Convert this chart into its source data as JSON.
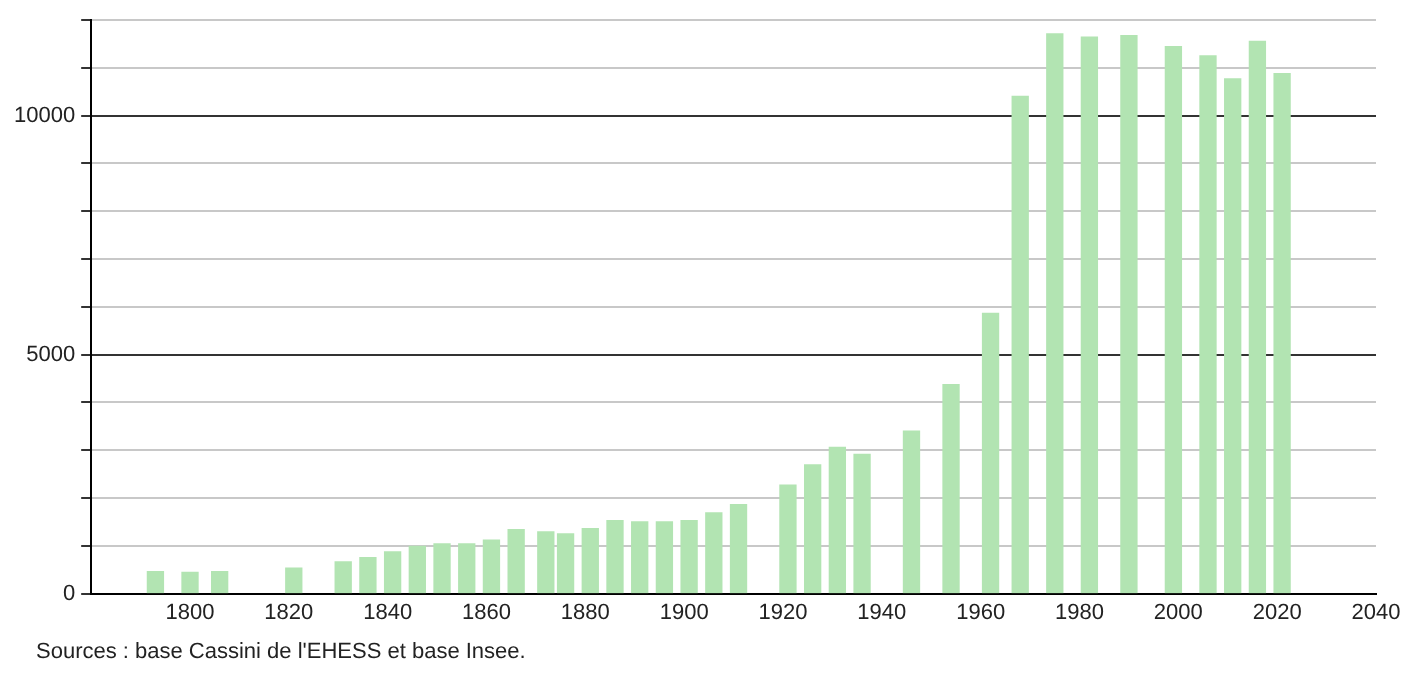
{
  "chart_data": {
    "type": "bar",
    "x": [
      1793,
      1800,
      1806,
      1821,
      1831,
      1836,
      1841,
      1846,
      1851,
      1856,
      1861,
      1866,
      1872,
      1876,
      1881,
      1886,
      1891,
      1896,
      1901,
      1906,
      1911,
      1921,
      1926,
      1931,
      1936,
      1946,
      1954,
      1962,
      1968,
      1975,
      1982,
      1990,
      1999,
      2006,
      2011,
      2016,
      2021
    ],
    "values": [
      460,
      445,
      460,
      530,
      665,
      750,
      870,
      985,
      1040,
      1040,
      1120,
      1340,
      1290,
      1250,
      1360,
      1525,
      1500,
      1500,
      1525,
      1690,
      1860,
      2270,
      2690,
      3060,
      2910,
      3400,
      4370,
      5860,
      10400,
      11710,
      11640,
      11670,
      11440,
      11250,
      10770,
      11550,
      10880
    ],
    "color": "#b2e4b2",
    "xlim": [
      1780,
      2040
    ],
    "xticks": [
      1800,
      1820,
      1840,
      1860,
      1880,
      1900,
      1920,
      1940,
      1960,
      1980,
      2000,
      2020,
      2040
    ],
    "ylim": [
      0,
      12000
    ],
    "yticks": [
      0,
      {
        "value": 1000,
        "label": null
      },
      {
        "value": 2000,
        "label": null
      },
      {
        "value": 3000,
        "label": null
      },
      {
        "value": 4000,
        "label": null
      },
      5000,
      {
        "value": 6000,
        "label": null
      },
      {
        "value": 7000,
        "label": null
      },
      {
        "value": 8000,
        "label": null
      },
      {
        "value": 9000,
        "label": null
      },
      10000,
      {
        "value": 11000,
        "label": null
      },
      {
        "value": 12000,
        "label": null
      }
    ],
    "grid": "y",
    "annotations": [
      "Sources : base Cassini de l'EHESS et base Insee."
    ]
  }
}
